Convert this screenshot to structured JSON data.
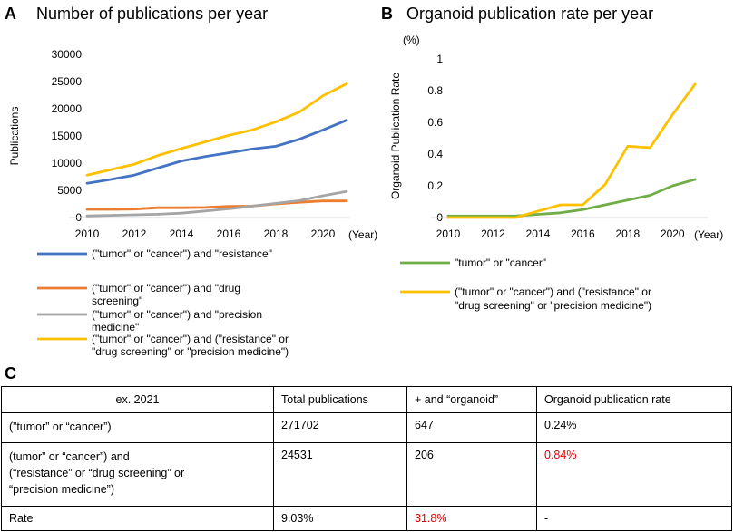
{
  "panel_a": {
    "letter": "A",
    "chart_data": {
      "type": "line",
      "title": "Number of publications per year",
      "xlabel": "(Year)",
      "ylabel": "Publications",
      "x": [
        2010,
        2011,
        2012,
        2013,
        2014,
        2015,
        2016,
        2017,
        2018,
        2019,
        2020,
        2021
      ],
      "xticks": [
        2010,
        2012,
        2014,
        2016,
        2018,
        2020
      ],
      "xtick_labels": [
        "2010",
        "2012",
        "2014",
        "2016",
        "2018",
        "2020"
      ],
      "ylim": [
        0,
        30000
      ],
      "yticks": [
        0,
        5000,
        10000,
        15000,
        20000,
        25000,
        30000
      ],
      "ytick_labels": [
        "0",
        "5000",
        "10000",
        "15000",
        "20000",
        "25000",
        "30000"
      ],
      "series": [
        {
          "name": "(\"tumor\" or \"cancer\") and \"resistance\"",
          "color": "#4472c4",
          "values": [
            6300,
            7000,
            7800,
            9100,
            10400,
            11200,
            11900,
            12600,
            13100,
            14400,
            16100,
            17900
          ]
        },
        {
          "name": "(\"tumor\" or \"cancer\") and \"drug screening\"",
          "color": "#ed7d31",
          "values": [
            1500,
            1500,
            1550,
            1800,
            1800,
            1850,
            2050,
            2100,
            2500,
            2800,
            3050,
            3050
          ]
        },
        {
          "name": "(\"tumor\" or \"cancer\") and \"precision medicine\"",
          "color": "#a5a5a5",
          "values": [
            300,
            400,
            500,
            600,
            800,
            1200,
            1600,
            2100,
            2600,
            3100,
            4000,
            4800
          ]
        },
        {
          "name": "(\"tumor\" or \"cancer\") and (\"resistance\" or \"drug screening\" or \"precision medicine\")",
          "color": "#ffc000",
          "values": [
            7800,
            8800,
            9800,
            11400,
            12700,
            13900,
            15100,
            16100,
            17600,
            19400,
            22400,
            24600
          ]
        }
      ],
      "legend_lines": [
        [
          "(\"tumor\" or \"cancer\") and \"resistance\""
        ],
        [
          "(\"tumor\" or \"cancer\") and \"drug",
          "screening\""
        ],
        [
          "(\"tumor\" or \"cancer\") and \"precision",
          "medicine\""
        ],
        [
          "(\"tumor\" or \"cancer\") and (\"resistance\" or",
          "\"drug screening\" or \"precision medicine\")"
        ]
      ]
    }
  },
  "panel_b": {
    "letter": "B",
    "chart_data": {
      "type": "line",
      "title": "Organoid publication rate per year",
      "unit_label": "(%)",
      "xlabel": "(Year)",
      "ylabel": "Organoid Publication Rate",
      "x": [
        2010,
        2011,
        2012,
        2013,
        2014,
        2015,
        2016,
        2017,
        2018,
        2019,
        2020,
        2021
      ],
      "xticks": [
        2010,
        2012,
        2014,
        2016,
        2018,
        2020
      ],
      "xtick_labels": [
        "2010",
        "2012",
        "2014",
        "2016",
        "2018",
        "2020"
      ],
      "ylim": [
        0,
        1
      ],
      "yticks": [
        0,
        0.2,
        0.4,
        0.6,
        0.8,
        1
      ],
      "ytick_labels": [
        "0",
        "0.2",
        "0.4",
        "0.6",
        "0.8",
        "1"
      ],
      "series": [
        {
          "name": "\"tumor\" or \"cancer\"",
          "color": "#70ad47",
          "values": [
            0.01,
            0.01,
            0.01,
            0.01,
            0.02,
            0.03,
            0.05,
            0.08,
            0.11,
            0.14,
            0.2,
            0.24
          ]
        },
        {
          "name": "(\"tumor\" or \"cancer\") and (\"resistance\" or \"drug screening\" or \"precision medicine\")",
          "color": "#ffc000",
          "values": [
            0.0,
            0.0,
            0.0,
            0.0,
            0.04,
            0.08,
            0.08,
            0.21,
            0.45,
            0.44,
            0.65,
            0.84
          ]
        }
      ],
      "legend_lines": [
        [
          "\"tumor\" or \"cancer\""
        ],
        [
          "(\"tumor\" or \"cancer\") and (\"resistance\" or",
          "\"drug screening\" or \"precision medicine\")"
        ]
      ]
    }
  },
  "panel_c": {
    "letter": "C",
    "header": [
      "ex. 2021",
      "Total publications",
      "+ and “organoid”",
      "Organoid publication rate"
    ],
    "rows": [
      {
        "label_lines": [
          "(”tumor” or “cancer”)"
        ],
        "total": "271702",
        "organoid": "647",
        "rate": "0.24%"
      },
      {
        "label_lines": [
          "(tumor” or “cancer”) and",
          "(“resistance” or “drug screening” or",
          "“precision medicine”)"
        ],
        "total": "24531",
        "organoid": "206",
        "rate": "0.84%"
      }
    ],
    "rate_row": {
      "label": "Rate",
      "total": "9.03%",
      "organoid": "31.8%",
      "rate": "-"
    },
    "highlight_color": "#e00000"
  }
}
